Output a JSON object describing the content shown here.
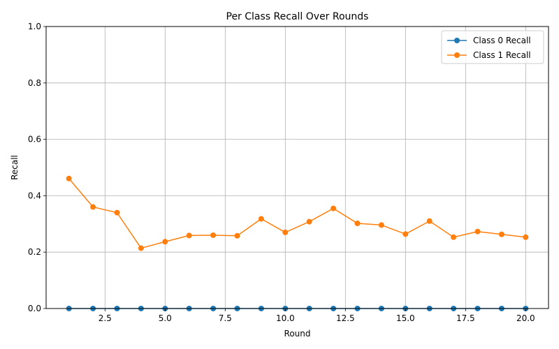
{
  "chart_data": {
    "type": "line",
    "title": "Per Class Recall Over Rounds",
    "xlabel": "Round",
    "ylabel": "Recall",
    "xlim": [
      0.05,
      20.95
    ],
    "ylim": [
      0,
      1
    ],
    "xticks": [
      2.5,
      5.0,
      7.5,
      10.0,
      12.5,
      15.0,
      17.5,
      20.0
    ],
    "xtick_labels": [
      "2.5",
      "5.0",
      "7.5",
      "10.0",
      "12.5",
      "15.0",
      "17.5",
      "20.0"
    ],
    "yticks": [
      0,
      0.2,
      0.4,
      0.6,
      0.8,
      1.0
    ],
    "ytick_labels": [
      "0.0",
      "0.2",
      "0.4",
      "0.6",
      "0.8",
      "1.0"
    ],
    "grid": true,
    "legend_position": "top-right",
    "x": [
      1,
      2,
      3,
      4,
      5,
      6,
      7,
      8,
      9,
      10,
      11,
      12,
      13,
      14,
      15,
      16,
      17,
      18,
      19,
      20
    ],
    "series": [
      {
        "name": "Class 0 Recall",
        "color": "#1f77b4",
        "marker": "circle",
        "values": [
          0,
          0,
          0,
          0,
          0,
          0,
          0,
          0,
          0,
          0,
          0,
          0,
          0,
          0,
          0,
          0,
          0,
          0,
          0,
          0
        ]
      },
      {
        "name": "Class 1 Recall",
        "color": "#ff7f0e",
        "marker": "circle",
        "values": [
          0.461,
          0.36,
          0.34,
          0.214,
          0.237,
          0.259,
          0.26,
          0.258,
          0.318,
          0.27,
          0.308,
          0.355,
          0.302,
          0.296,
          0.264,
          0.31,
          0.253,
          0.273,
          0.263,
          0.253
        ]
      }
    ]
  }
}
